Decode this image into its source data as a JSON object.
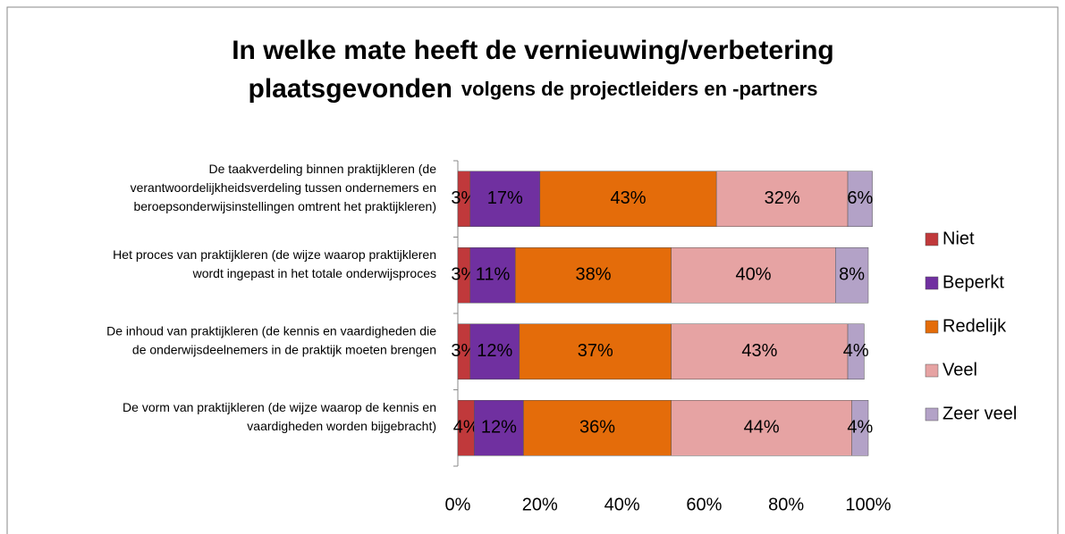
{
  "chart_data": {
    "type": "stacked_barh",
    "title": "In welke mate heeft de vernieuwing/verbetering plaatsgevonden",
    "subtitle": "volgens de projectleiders en -partners",
    "categories": [
      "De taakverdeling binnen praktijkleren (de\nverantwoordelijkheidsverdeling tussen ondernemers en\nberoepsonderwijsinstellingen omtrent het praktijkleren)",
      "Het proces van praktijkleren (de wijze waarop praktijkleren\nwordt ingepast in het totale onderwijsproces",
      "De inhoud van praktijkleren (de kennis en vaardigheden die\nde onderwijsdeelnemers in de praktijk moeten brengen",
      "De vorm van praktijkleren (de wijze waarop de kennis en\nvaardigheden worden bijgebracht)"
    ],
    "series": [
      {
        "name": "Niet",
        "color": "#c0393b",
        "values": [
          3,
          3,
          3,
          4
        ],
        "value_labels": [
          "3%",
          "3%",
          "3%",
          "4%"
        ]
      },
      {
        "name": "Beperkt",
        "color": "#7030a0",
        "values": [
          17,
          11,
          12,
          12
        ],
        "value_labels": [
          "17%",
          "11%",
          "12%",
          "12%"
        ]
      },
      {
        "name": "Redelijk",
        "color": "#e46c0a",
        "values": [
          43,
          38,
          37,
          36
        ],
        "value_labels": [
          "43%",
          "38%",
          "37%",
          "36%"
        ]
      },
      {
        "name": "Veel",
        "color": "#e6a3a3",
        "values": [
          32,
          40,
          43,
          44
        ],
        "value_labels": [
          "32%",
          "40%",
          "43%",
          "44%"
        ]
      },
      {
        "name": "Zeer veel",
        "color": "#b3a2c7",
        "values": [
          6,
          8,
          4,
          4
        ],
        "value_labels": [
          "6%",
          "8%",
          "4%",
          "4%"
        ]
      }
    ],
    "xlim": [
      0,
      100
    ],
    "xticks": [
      {
        "value": 0,
        "label": "0%"
      },
      {
        "value": 20,
        "label": "20%"
      },
      {
        "value": 40,
        "label": "40%"
      },
      {
        "value": 60,
        "label": "60%"
      },
      {
        "value": 80,
        "label": "80%"
      },
      {
        "value": 100,
        "label": "100%"
      }
    ],
    "legend": "right"
  }
}
